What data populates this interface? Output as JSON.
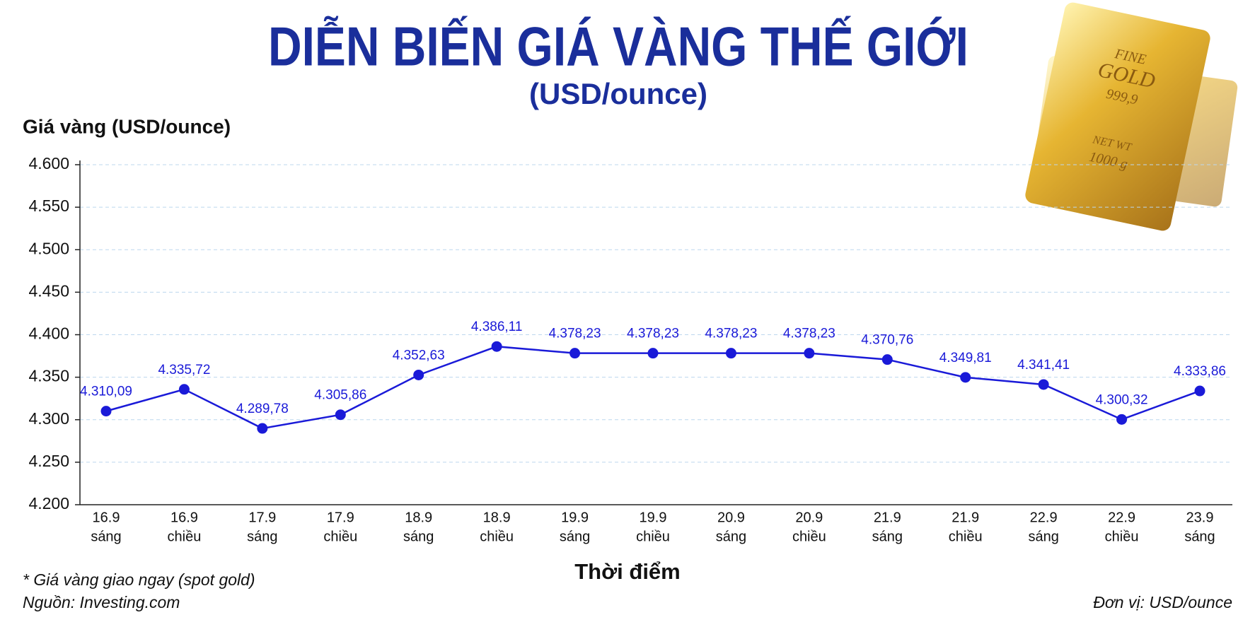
{
  "chart_data": {
    "type": "line",
    "title": "DIỄN BIẾN GIÁ VÀNG THẾ GIỚI",
    "subtitle": "(USD/ounce)",
    "y_label": "Giá vàng (USD/ounce)",
    "x_label": "Thời điểm",
    "notes": [
      "* Giá vàng giao ngay (spot gold)",
      "Nguồn: Investing.com"
    ],
    "unit_note": "Đơn vị: USD/ounce",
    "image_text": [
      "FINE",
      "GOLD",
      "999,9",
      "NET WT",
      "1000 g"
    ],
    "categories": [
      [
        "16.9",
        "sáng"
      ],
      [
        "16.9",
        "chiều"
      ],
      [
        "17.9",
        "sáng"
      ],
      [
        "17.9",
        "chiều"
      ],
      [
        "18.9",
        "sáng"
      ],
      [
        "18.9",
        "chiều"
      ],
      [
        "19.9",
        "sáng"
      ],
      [
        "19.9",
        "chiều"
      ],
      [
        "20.9",
        "sáng"
      ],
      [
        "20.9",
        "chiều"
      ],
      [
        "21.9",
        "sáng"
      ],
      [
        "21.9",
        "chiều"
      ],
      [
        "22.9",
        "sáng"
      ],
      [
        "22.9",
        "chiều"
      ],
      [
        "23.9",
        "sáng"
      ]
    ],
    "series": [
      {
        "name": "Giá vàng",
        "color": "#1a1ad8",
        "values": [
          4310.09,
          4335.72,
          4289.78,
          4305.86,
          4352.63,
          4386.11,
          4378.23,
          4378.23,
          4378.23,
          4378.23,
          4370.76,
          4349.81,
          4341.41,
          4300.32,
          4333.86
        ],
        "value_labels": [
          "4.310,09",
          "4.335,72",
          "4.289,78",
          "4.305,86",
          "4.352,63",
          "4.386,11",
          "4.378,23",
          "4.378,23",
          "4.378,23",
          "4.378,23",
          "4.370,76",
          "4.349,81",
          "4.341,41",
          "4.300,32",
          "4.333,86"
        ]
      }
    ],
    "ylim": [
      4200,
      4600
    ],
    "yticks": [
      {
        "value": 4200,
        "label": "4.200"
      },
      {
        "value": 4250,
        "label": "4.250"
      },
      {
        "value": 4300,
        "label": "4.300"
      },
      {
        "value": 4350,
        "label": "4.350"
      },
      {
        "value": 4400,
        "label": "4.400"
      },
      {
        "value": 4450,
        "label": "4.450"
      },
      {
        "value": 4500,
        "label": "4.500"
      },
      {
        "value": 4550,
        "label": "4.550"
      },
      {
        "value": 4600,
        "label": "4.600"
      }
    ],
    "grid": true
  }
}
